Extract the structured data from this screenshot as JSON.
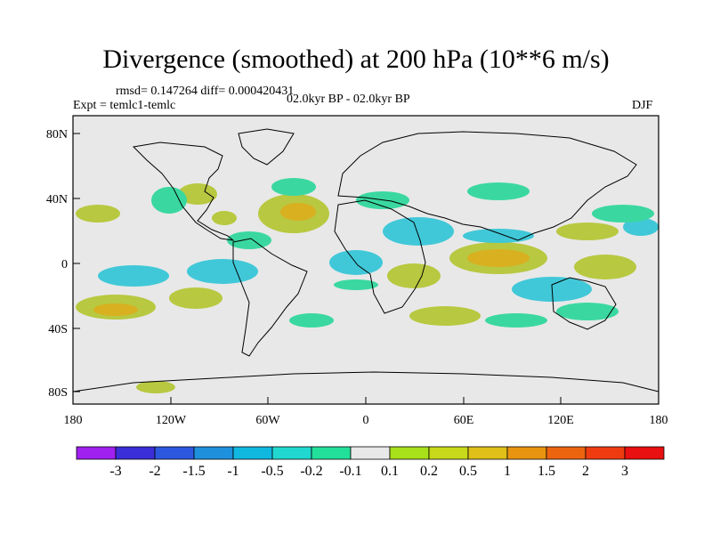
{
  "title": "Divergence (smoothed) at 200 hPa (10**6 m/s)",
  "stats": "rmsd= 0.147264  diff= 0.000420431",
  "experiment": "Expt = temlc1-temlc",
  "period": "02.0kyr BP - 02.0kyr BP",
  "season": "DJF",
  "lat_labels": [
    "80N",
    "40N",
    "0",
    "40S",
    "80S"
  ],
  "lon_labels": [
    "180",
    "120W",
    "60W",
    "0",
    "60E",
    "120E",
    "180"
  ],
  "colorbar": {
    "colors": [
      "#a020f0",
      "#3a2ed8",
      "#2c58e0",
      "#1e90dc",
      "#10b8e0",
      "#20d8d0",
      "#22e09a",
      "#e8e8e8",
      "#a8e01a",
      "#c8d81a",
      "#e0c018",
      "#e89410",
      "#ec6410",
      "#ee3c10",
      "#e81010"
    ],
    "labels": [
      "-3",
      "-2",
      "-1.5",
      "-1",
      "-0.5",
      "-0.2",
      "-0.1",
      "0.1",
      "0.2",
      "0.5",
      "1",
      "1.5",
      "2",
      "3"
    ]
  },
  "palette": {
    "ocean": "#e8e8e8",
    "positive": "#b8c840",
    "positive_strong": "#d8b020",
    "negative_light": "#3ad8a0",
    "negative": "#40c8d8"
  }
}
